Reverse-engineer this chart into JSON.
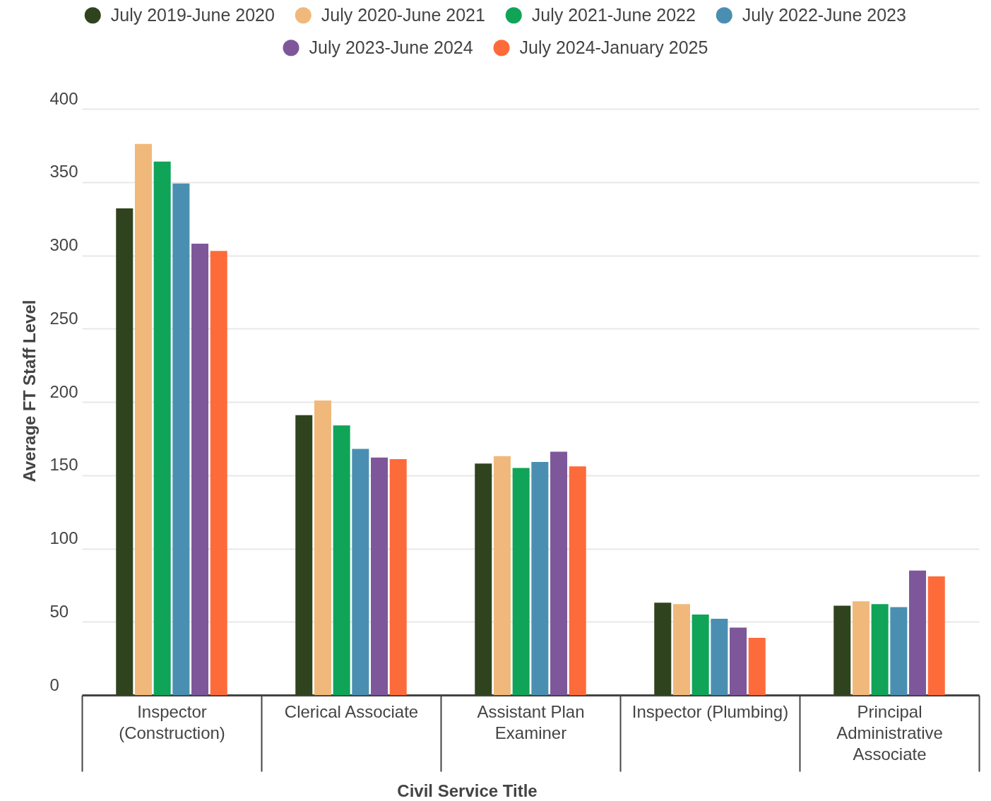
{
  "chart_data": {
    "type": "bar",
    "xlabel": "Civil Service Title",
    "ylabel": "Average FT Staff Level",
    "categories": [
      "Inspector (Construction)",
      "Clerical Associate",
      "Assistant Plan Examiner",
      "Inspector (Plumbing)",
      "Principal Administrative Associate"
    ],
    "series": [
      {
        "name": "July 2019-June 2020",
        "color": "#30431f",
        "values": [
          332,
          191,
          158,
          63,
          61
        ]
      },
      {
        "name": "July 2020-June 2021",
        "color": "#f0b97b",
        "values": [
          376,
          201,
          163,
          62,
          64
        ]
      },
      {
        "name": "July 2021-June 2022",
        "color": "#10a459",
        "values": [
          364,
          184,
          155,
          55,
          62
        ]
      },
      {
        "name": "July 2022-June 2023",
        "color": "#4a8fb2",
        "values": [
          349,
          168,
          159,
          52,
          60
        ]
      },
      {
        "name": "July 2023-June 2024",
        "color": "#7e579a",
        "values": [
          308,
          162,
          166,
          46,
          85
        ]
      },
      {
        "name": "July 2024-January 2025",
        "color": "#fe6b3a",
        "values": [
          303,
          161,
          156,
          39,
          81
        ]
      }
    ],
    "ylim": [
      0,
      400
    ],
    "yticks": [
      0,
      50,
      100,
      150,
      200,
      250,
      300,
      350,
      400
    ],
    "grid": "y",
    "legend": "top"
  }
}
